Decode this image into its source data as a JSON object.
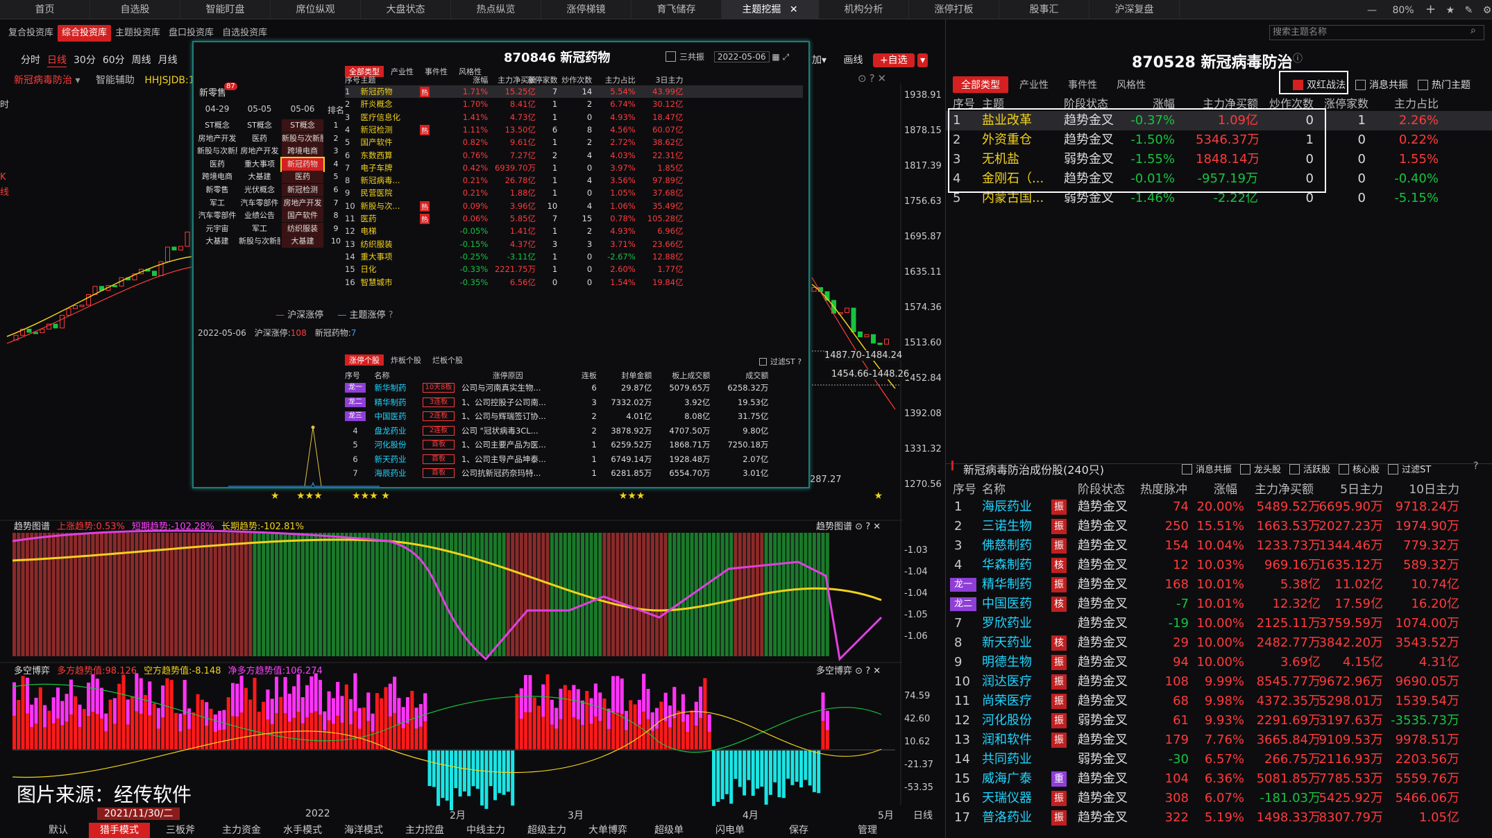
{
  "topnav": [
    "首页",
    "自选股",
    "智能盯盘",
    "席位纵观",
    "大盘状态",
    "热点纵览",
    "涨停梯镜",
    "育飞储存",
    "主题挖掘",
    "机构分析",
    "涨停打板",
    "股事汇",
    "沪深复盘"
  ],
  "topnav_right": {
    "zoom": "80%"
  },
  "subnav": [
    "复合投资库",
    "综合投资库",
    "主题投资库",
    "盘口投资库",
    "自选投资库"
  ],
  "periods": [
    "分时",
    "日线",
    "30分",
    "60分",
    "周线",
    "月线"
  ],
  "left_chart": {
    "stock_label": "新冠病毒防治",
    "assist": "智能辅助",
    "code_text": "HHJSJDB:1",
    "y_ticks": [
      "1938.91",
      "1878.15",
      "1817.39",
      "1756.63",
      "1695.87",
      "1635.11",
      "1574.36",
      "1513.60",
      "1452.84",
      "1392.08",
      "1331.32",
      "1270.56"
    ],
    "annot1": "1487.70-1484.24",
    "annot2": "1454.66-1448.26",
    "annot3": "287.27",
    "left_edge": [
      "时",
      "K",
      "线"
    ]
  },
  "trend_panel": {
    "title": "趋势图谱",
    "items": [
      "上涨趋势:0.53%",
      "短期趋势:-102.28%",
      "长期趋势:-102.81%"
    ],
    "y_ticks": [
      "-1.03",
      "-1.04",
      "-1.04",
      "-1.05",
      "-1.06"
    ]
  },
  "game_panel": {
    "title": "多空博弈",
    "items": [
      "多方趋势值:98.126",
      "空方趋势值:-8.148",
      "净多方趋势值:106.274"
    ],
    "y_ticks": [
      "74.59",
      "42.60",
      "10.62",
      "-21.37",
      "-53.35"
    ]
  },
  "watermark": "图片来源：经传软件",
  "time_axis": {
    "date": "2021/11/30/二",
    "labels": [
      "2022",
      "2月",
      "3月",
      "4月",
      "5月"
    ],
    "period": "日线"
  },
  "bottom_tabs": [
    "默认",
    "猎手模式",
    "三板斧",
    "主力资金",
    "水手模式",
    "海洋模式",
    "主力控盘",
    "中线主力",
    "超级主力",
    "大单博弈",
    "超级单",
    "闪电单",
    "保存",
    "管理"
  ],
  "popup": {
    "title": "870846 新冠药物",
    "date": "2022-05-06",
    "checkbox": "三共振",
    "label_xls": "新零售",
    "badge87": "87",
    "rank_headers": [
      "04-29",
      "05-05",
      "05-06",
      "排名"
    ],
    "rank_rows": [
      [
        "ST概念",
        "ST概念",
        "ST概念",
        "1"
      ],
      [
        "房地产开发",
        "医药",
        "新股与次新股",
        "2"
      ],
      [
        "新股与次新股",
        "房地产开发",
        "跨境电商",
        "3"
      ],
      [
        "医药",
        "重大事项",
        "新冠药物",
        "4"
      ],
      [
        "跨境电商",
        "大基建",
        "医药",
        "5"
      ],
      [
        "新零售",
        "光伏概念",
        "新冠检测",
        "6"
      ],
      [
        "军工",
        "汽车零部件",
        "房地产开发",
        "7"
      ],
      [
        "汽车零部件",
        "业绩公告",
        "国产软件",
        "8"
      ],
      [
        "元宇宙",
        "军工",
        "纺织服装",
        "9"
      ],
      [
        "大基建",
        "新股与次新股",
        "大基建",
        "10"
      ]
    ],
    "legend": [
      "沪深涨停",
      "主题涨停"
    ],
    "mini_row": [
      "2022-05-06",
      "沪深涨停:",
      "108",
      "新冠药物:",
      "7"
    ],
    "tabs": [
      "全部类型",
      "产业性",
      "事件性",
      "风格性"
    ],
    "theme_headers": [
      "序号",
      "主题",
      "涨幅",
      "主力净买额",
      "涨停家数",
      "炒作次数",
      "主力占比",
      "3日主力"
    ],
    "themes": [
      [
        "1",
        "新冠药物",
        "1.71%",
        "15.25亿",
        "7",
        "14",
        "5.54%",
        "43.99亿"
      ],
      [
        "2",
        "肝炎概念",
        "1.70%",
        "8.41亿",
        "1",
        "2",
        "6.74%",
        "30.12亿"
      ],
      [
        "3",
        "医疗信息化",
        "1.41%",
        "4.73亿",
        "1",
        "0",
        "4.93%",
        "18.47亿"
      ],
      [
        "4",
        "新冠检测",
        "1.11%",
        "13.50亿",
        "6",
        "8",
        "4.56%",
        "60.07亿"
      ],
      [
        "5",
        "国产软件",
        "0.82%",
        "9.61亿",
        "1",
        "2",
        "2.72%",
        "38.62亿"
      ],
      [
        "6",
        "东数西算",
        "0.76%",
        "7.27亿",
        "2",
        "4",
        "4.03%",
        "22.31亿"
      ],
      [
        "7",
        "电子车牌",
        "0.42%",
        "6939.70万",
        "1",
        "0",
        "3.97%",
        "1.85亿"
      ],
      [
        "8",
        "新冠病毒...",
        "0.21%",
        "26.78亿",
        "1",
        "4",
        "3.56%",
        "97.89亿"
      ],
      [
        "9",
        "民营医院",
        "0.21%",
        "1.88亿",
        "1",
        "0",
        "1.05%",
        "37.68亿"
      ],
      [
        "10",
        "新股与次...",
        "0.09%",
        "3.96亿",
        "10",
        "4",
        "1.06%",
        "35.49亿"
      ],
      [
        "11",
        "医药",
        "0.06%",
        "5.85亿",
        "7",
        "15",
        "0.78%",
        "105.28亿"
      ],
      [
        "12",
        "电梯",
        "-0.05%",
        "1.41亿",
        "1",
        "2",
        "4.93%",
        "6.96亿"
      ],
      [
        "13",
        "纺织服装",
        "-0.15%",
        "4.37亿",
        "3",
        "3",
        "3.71%",
        "23.66亿"
      ],
      [
        "14",
        "重大事项",
        "-0.25%",
        "-3.11亿",
        "1",
        "0",
        "-2.67%",
        "12.88亿"
      ],
      [
        "15",
        "日化",
        "-0.33%",
        "2221.75万",
        "1",
        "0",
        "2.60%",
        "1.77亿"
      ],
      [
        "16",
        "智慧城市",
        "-0.35%",
        "6.56亿",
        "0",
        "0",
        "1.54%",
        "19.84亿"
      ]
    ],
    "hot_rows": [
      "1",
      "4",
      "10",
      "11"
    ],
    "stock_tabs": [
      "涨停个股",
      "炸板个股",
      "烂板个股"
    ],
    "filter": "过滤ST",
    "stock_headers": [
      "序号",
      "名称",
      "涨停原因",
      "连板",
      "封单金额",
      "板上成交额",
      "成交额"
    ],
    "stocks": [
      [
        "龙一",
        "新华制药",
        "10天8板",
        "公司与河南真实生物...",
        "6",
        "29.87亿",
        "5079.65万",
        "6258.32万"
      ],
      [
        "龙二",
        "精华制药",
        "3连板",
        "1、公司控股子公司南...",
        "3",
        "7332.02万",
        "3.92亿",
        "19.53亿"
      ],
      [
        "龙三",
        "中国医药",
        "2连板",
        "1、公司与辉瑞签订协...",
        "2",
        "4.01亿",
        "8.08亿",
        "31.75亿"
      ],
      [
        "4",
        "盘龙药业",
        "2连板",
        "公司 \"冠状病毒3CL...",
        "2",
        "3878.92万",
        "4707.50万",
        "9.80亿"
      ],
      [
        "5",
        "河化股份",
        "首板",
        "1、公司主要产品为医...",
        "1",
        "6259.52万",
        "1868.71万",
        "7250.18万"
      ],
      [
        "6",
        "新天药业",
        "首板",
        "1、公司主导产品坤泰...",
        "1",
        "6749.14万",
        "1928.48万",
        "2.07亿"
      ],
      [
        "7",
        "海辰药业",
        "首板",
        "公司抗新冠药奈玛特...",
        "1",
        "6281.85万",
        "6554.70万",
        "3.01亿"
      ]
    ]
  },
  "right_panel": {
    "title": "870528 新冠病毒防治",
    "search_placeholder": "搜索主题名称",
    "tabs": [
      "全部类型",
      "产业性",
      "事件性",
      "风格性"
    ],
    "checks": [
      "双红战法",
      "消息共振",
      "热门主题"
    ],
    "headers": [
      "序号",
      "主题",
      "阶段状态",
      "涨幅",
      "主力净买额",
      "炒作次数",
      "涨停家数",
      "主力占比"
    ],
    "themes": [
      [
        "1",
        "盐业改革",
        "趋势金叉",
        "-0.37%",
        "1.09亿",
        "0",
        "1",
        "2.26%"
      ],
      [
        "2",
        "外资重仓",
        "趋势金叉",
        "-1.50%",
        "5346.37万",
        "1",
        "0",
        "0.22%"
      ],
      [
        "3",
        "无机盐",
        "弱势金叉",
        "-1.55%",
        "1848.14万",
        "0",
        "0",
        "1.55%"
      ],
      [
        "4",
        "金刚石（...",
        "趋势金叉",
        "-0.01%",
        "-957.19万",
        "0",
        "0",
        "-0.40%"
      ],
      [
        "5",
        "内蒙古国...",
        "弱势金叉",
        "-1.46%",
        "-2.22亿",
        "0",
        "0",
        "-5.15%"
      ]
    ],
    "cons_title": "新冠病毒防治成份股(240只)",
    "cons_checks": [
      "消息共振",
      "龙头股",
      "活跃股",
      "核心股",
      "过滤ST"
    ],
    "cons_headers": [
      "序号",
      "名称",
      "阶段状态",
      "热度脉冲",
      "涨幅",
      "主力净买额",
      "5日主力",
      "10日主力"
    ],
    "cons": [
      [
        "1",
        "",
        "海辰药业",
        "振",
        "趋势金叉",
        "74",
        "20.00%",
        "5489.52万",
        "6695.90万",
        "9718.24万"
      ],
      [
        "2",
        "",
        "三诺生物",
        "振",
        "趋势金叉",
        "250",
        "15.51%",
        "1663.53万",
        "2027.23万",
        "1974.90万"
      ],
      [
        "3",
        "",
        "佛慈制药",
        "振",
        "趋势金叉",
        "154",
        "10.04%",
        "1233.73万",
        "1344.46万",
        "779.32万"
      ],
      [
        "4",
        "",
        "华森制药",
        "核",
        "趋势金叉",
        "12",
        "10.03%",
        "969.16万",
        "1635.12万",
        "589.32万"
      ],
      [
        "",
        "龙一",
        "精华制药",
        "振",
        "趋势金叉",
        "168",
        "10.01%",
        "5.38亿",
        "11.02亿",
        "10.74亿"
      ],
      [
        "",
        "龙二",
        "中国医药",
        "核",
        "趋势金叉",
        "-7",
        "10.01%",
        "12.32亿",
        "17.59亿",
        "16.20亿"
      ],
      [
        "7",
        "",
        "罗欣药业",
        "",
        "趋势金叉",
        "-19",
        "10.00%",
        "2125.11万",
        "3759.59万",
        "1074.00万"
      ],
      [
        "8",
        "",
        "新天药业",
        "核",
        "趋势金叉",
        "29",
        "10.00%",
        "2482.77万",
        "3842.20万",
        "3543.52万"
      ],
      [
        "9",
        "",
        "明德生物",
        "振",
        "趋势金叉",
        "94",
        "10.00%",
        "3.69亿",
        "4.15亿",
        "4.31亿"
      ],
      [
        "10",
        "",
        "润达医疗",
        "振",
        "趋势金叉",
        "108",
        "9.99%",
        "8545.77万",
        "9672.96万",
        "9690.05万"
      ],
      [
        "11",
        "",
        "尚荣医疗",
        "振",
        "趋势金叉",
        "68",
        "9.98%",
        "4372.35万",
        "5298.01万",
        "1539.54万"
      ],
      [
        "12",
        "",
        "河化股份",
        "振",
        "弱势金叉",
        "61",
        "9.93%",
        "2291.69万",
        "3197.63万",
        "-3535.73万"
      ],
      [
        "13",
        "",
        "润和软件",
        "振",
        "趋势金叉",
        "179",
        "7.76%",
        "3665.84万",
        "9109.53万",
        "9978.51万"
      ],
      [
        "14",
        "",
        "共同药业",
        "",
        "弱势金叉",
        "-30",
        "6.57%",
        "266.75万",
        "2116.93万",
        "2203.56万"
      ],
      [
        "15",
        "",
        "威海广泰",
        "重",
        "趋势金叉",
        "104",
        "6.36%",
        "5081.85万",
        "7785.53万",
        "5559.76万"
      ],
      [
        "16",
        "",
        "天瑞仪器",
        "振",
        "趋势金叉",
        "308",
        "6.07%",
        "-181.03万",
        "5425.92万",
        "5466.06万"
      ],
      [
        "17",
        "",
        "普洛药业",
        "振",
        "趋势金叉",
        "322",
        "5.19%",
        "1498.33万",
        "8307.79万",
        "1.05亿"
      ]
    ]
  }
}
